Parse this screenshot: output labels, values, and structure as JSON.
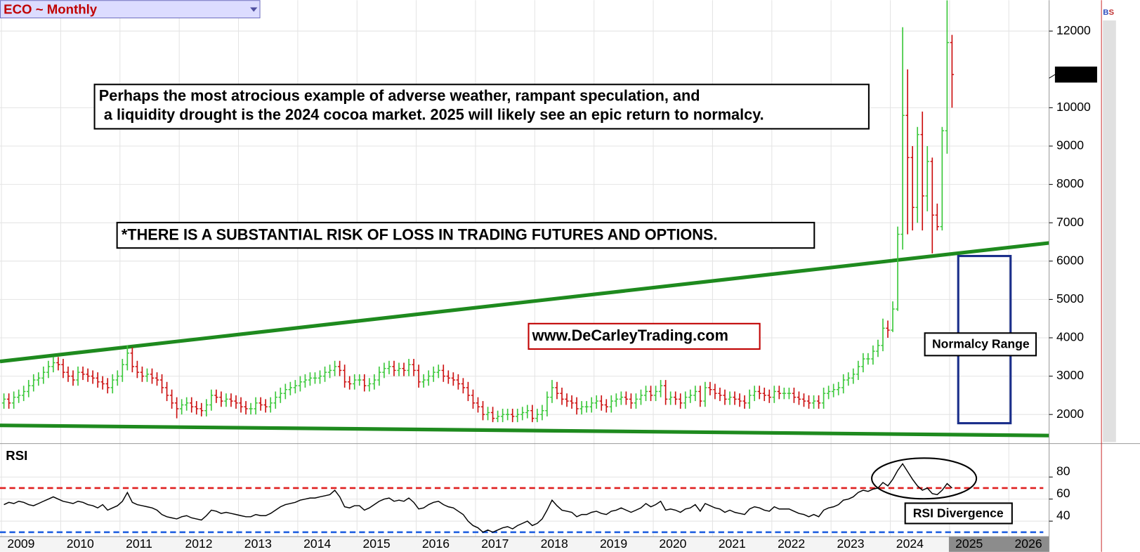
{
  "chart_data": [
    {
      "type": "ohlc",
      "title": "ECO ~ Monthly",
      "up_color": "#3cc83c",
      "down_color": "#cc1010",
      "grid": true,
      "xlim": [
        2009,
        2026.68
      ],
      "xticks": [
        2009,
        2010,
        2011,
        2012,
        2013,
        2014,
        2015,
        2016,
        2017,
        2018,
        2019,
        2020,
        2021,
        2022,
        2023,
        2024,
        2025,
        2026
      ],
      "ylim": [
        1242,
        12806
      ],
      "yticks": [
        2000,
        3000,
        4000,
        5000,
        6000,
        7000,
        8000,
        9000,
        10000,
        12000
      ],
      "annotations": [
        "Perhaps the most atrocious example of adverse weather, rampant speculation, and",
        " a liquidity drought is the 2024 cocoa market. 2025 will likely see an epic return to normalcy.",
        "*THERE IS A SUBSTANTIAL RISK OF LOSS IN TRADING FUTURES AND OPTIONS.",
        "www.DeCarleyTrading.com",
        "Normalcy Range"
      ],
      "toolbar": [
        "B",
        "S"
      ],
      "open": [
        2300,
        2400,
        2300,
        2450,
        2500,
        2600,
        2750,
        2900,
        2950,
        3100,
        3250,
        3350,
        3300,
        3100,
        3000,
        2900,
        3100,
        3050,
        3000,
        2950,
        2850,
        2800,
        2700,
        2900,
        3000,
        3300,
        3600,
        3250,
        3100,
        3000,
        3050,
        2950,
        2900,
        2700,
        2500,
        2300,
        2150,
        2250,
        2300,
        2200,
        2150,
        2100,
        2250,
        2500,
        2450,
        2350,
        2400,
        2350,
        2300,
        2200,
        2150,
        2150,
        2300,
        2250,
        2200,
        2300,
        2450,
        2550,
        2650,
        2700,
        2750,
        2850,
        2900,
        2950,
        2950,
        3000,
        3100,
        3150,
        3250,
        3150,
        2850,
        2800,
        2900,
        2900,
        2750,
        2800,
        2900,
        3100,
        3200,
        3250,
        3150,
        3200,
        3150,
        3300,
        3150,
        2850,
        2900,
        3000,
        3100,
        3150,
        3000,
        2950,
        2900,
        2800,
        2700,
        2500,
        2300,
        2200,
        2000,
        2050,
        1900,
        1950,
        2000,
        2000,
        1950,
        2000,
        2050,
        2100,
        1900,
        2000,
        2100,
        2450,
        2700,
        2550,
        2400,
        2350,
        2300,
        2150,
        2200,
        2200,
        2300,
        2350,
        2250,
        2200,
        2350,
        2400,
        2450,
        2400,
        2300,
        2400,
        2500,
        2600,
        2500,
        2600,
        2750,
        2400,
        2450,
        2400,
        2300,
        2450,
        2500,
        2600,
        2350,
        2700,
        2650,
        2550,
        2500,
        2400,
        2450,
        2400,
        2350,
        2300,
        2500,
        2600,
        2550,
        2500,
        2450,
        2600,
        2550,
        2550,
        2550,
        2450,
        2400,
        2350,
        2300,
        2350,
        2300,
        2550,
        2600,
        2650,
        2700,
        2900,
        2950,
        3050,
        3250,
        3450,
        3450,
        3650,
        3800,
        4250,
        4200,
        4750,
        6700,
        9800,
        8700,
        7400,
        9300,
        7700,
        8600,
        7200,
        6900,
        9400,
        11700
      ],
      "high": [
        2550,
        2550,
        2600,
        2650,
        2750,
        2900,
        3050,
        3100,
        3250,
        3400,
        3500,
        3500,
        3450,
        3250,
        3150,
        3250,
        3250,
        3200,
        3150,
        3100,
        3000,
        2950,
        3050,
        3150,
        3450,
        3800,
        3750,
        3400,
        3250,
        3200,
        3200,
        3100,
        3050,
        2850,
        2650,
        2450,
        2400,
        2450,
        2450,
        2350,
        2300,
        2400,
        2650,
        2650,
        2600,
        2550,
        2550,
        2500,
        2450,
        2350,
        2300,
        2450,
        2450,
        2400,
        2450,
        2600,
        2700,
        2800,
        2850,
        2900,
        3000,
        3050,
        3100,
        3100,
        3150,
        3250,
        3300,
        3400,
        3400,
        3300,
        3000,
        3050,
        3050,
        3050,
        2950,
        3050,
        3250,
        3350,
        3400,
        3400,
        3350,
        3350,
        3450,
        3450,
        3300,
        3050,
        3150,
        3250,
        3300,
        3300,
        3150,
        3100,
        3050,
        2950,
        2850,
        2650,
        2450,
        2350,
        2200,
        2200,
        2100,
        2150,
        2150,
        2150,
        2150,
        2200,
        2250,
        2250,
        2150,
        2250,
        2600,
        2900,
        2850,
        2700,
        2550,
        2500,
        2450,
        2350,
        2350,
        2450,
        2500,
        2500,
        2400,
        2500,
        2550,
        2600,
        2600,
        2550,
        2550,
        2650,
        2750,
        2750,
        2750,
        2900,
        2900,
        2600,
        2600,
        2550,
        2600,
        2650,
        2750,
        2750,
        2850,
        2850,
        2800,
        2700,
        2650,
        2600,
        2600,
        2550,
        2500,
        2650,
        2750,
        2750,
        2700,
        2650,
        2750,
        2750,
        2700,
        2700,
        2700,
        2600,
        2550,
        2500,
        2500,
        2500,
        2700,
        2750,
        2800,
        2850,
        3050,
        3100,
        3200,
        3400,
        3600,
        3600,
        3800,
        3950,
        4500,
        4450,
        4950,
        6900,
        12100,
        11000,
        9000,
        9500,
        9900,
        9000,
        8700,
        7500,
        9500,
        12800,
        11900
      ],
      "low": [
        2150,
        2150,
        2150,
        2300,
        2350,
        2450,
        2600,
        2750,
        2800,
        2950,
        3100,
        3150,
        2950,
        2850,
        2750,
        2750,
        2900,
        2850,
        2800,
        2700,
        2650,
        2550,
        2550,
        2750,
        2850,
        3150,
        3100,
        2950,
        2850,
        2850,
        2800,
        2750,
        2550,
        2350,
        2150,
        1900,
        2000,
        2100,
        2050,
        2000,
        1950,
        1950,
        2100,
        2300,
        2200,
        2200,
        2200,
        2150,
        2050,
        2000,
        2000,
        2000,
        2100,
        2050,
        2050,
        2150,
        2300,
        2400,
        2500,
        2550,
        2600,
        2700,
        2750,
        2800,
        2800,
        2850,
        2950,
        3000,
        3000,
        2700,
        2650,
        2650,
        2750,
        2600,
        2600,
        2650,
        2750,
        2950,
        3050,
        3000,
        3000,
        3000,
        3000,
        3000,
        2700,
        2700,
        2750,
        2850,
        2950,
        2850,
        2800,
        2750,
        2650,
        2550,
        2350,
        2150,
        2050,
        1850,
        1850,
        1800,
        1800,
        1800,
        1850,
        1800,
        1800,
        1850,
        1900,
        1800,
        1800,
        1850,
        1950,
        2300,
        2400,
        2250,
        2200,
        2150,
        2000,
        2000,
        2050,
        2050,
        2150,
        2100,
        2050,
        2050,
        2200,
        2250,
        2250,
        2150,
        2150,
        2250,
        2350,
        2350,
        2350,
        2450,
        2250,
        2250,
        2250,
        2150,
        2150,
        2300,
        2350,
        2200,
        2200,
        2500,
        2400,
        2350,
        2250,
        2250,
        2250,
        2200,
        2150,
        2150,
        2350,
        2400,
        2350,
        2300,
        2300,
        2400,
        2400,
        2400,
        2300,
        2250,
        2200,
        2150,
        2150,
        2150,
        2150,
        2400,
        2450,
        2500,
        2550,
        2750,
        2800,
        2900,
        3100,
        3300,
        3300,
        3500,
        3650,
        4000,
        4150,
        4700,
        6300,
        6700,
        6800,
        7000,
        6800,
        7300,
        6200,
        6800,
        6800,
        8800,
        10000
      ],
      "close": [
        2400,
        2300,
        2450,
        2500,
        2600,
        2750,
        2900,
        2950,
        3100,
        3250,
        3350,
        3300,
        3100,
        3000,
        2900,
        3100,
        3050,
        3000,
        2950,
        2850,
        2800,
        2700,
        2900,
        3000,
        3300,
        3600,
        3250,
        3100,
        3000,
        3050,
        2950,
        2900,
        2700,
        2500,
        2300,
        2150,
        2250,
        2300,
        2200,
        2150,
        2100,
        2250,
        2500,
        2450,
        2350,
        2400,
        2350,
        2300,
        2200,
        2150,
        2150,
        2300,
        2250,
        2200,
        2300,
        2450,
        2550,
        2650,
        2700,
        2750,
        2850,
        2900,
        2950,
        2950,
        3000,
        3100,
        3150,
        3250,
        3150,
        2850,
        2800,
        2900,
        2900,
        2750,
        2800,
        2900,
        3100,
        3200,
        3250,
        3150,
        3200,
        3150,
        3300,
        3150,
        2850,
        2900,
        3000,
        3100,
        3150,
        3000,
        2950,
        2900,
        2800,
        2700,
        2500,
        2300,
        2200,
        2000,
        2050,
        1900,
        1950,
        2000,
        2000,
        1950,
        2000,
        2050,
        2100,
        1900,
        2000,
        2100,
        2450,
        2700,
        2550,
        2400,
        2350,
        2300,
        2150,
        2200,
        2200,
        2300,
        2350,
        2250,
        2200,
        2350,
        2400,
        2450,
        2400,
        2300,
        2400,
        2500,
        2600,
        2500,
        2600,
        2750,
        2400,
        2450,
        2400,
        2300,
        2450,
        2500,
        2600,
        2350,
        2700,
        2650,
        2550,
        2500,
        2400,
        2450,
        2400,
        2350,
        2300,
        2500,
        2600,
        2550,
        2500,
        2450,
        2600,
        2550,
        2550,
        2550,
        2450,
        2400,
        2350,
        2300,
        2350,
        2300,
        2550,
        2600,
        2650,
        2700,
        2900,
        2950,
        3050,
        3250,
        3450,
        3450,
        3650,
        3800,
        4250,
        4200,
        4750,
        6700,
        9800,
        8700,
        7400,
        9300,
        7700,
        8600,
        7200,
        6900,
        9400,
        11700,
        10865
      ]
    },
    {
      "type": "line",
      "title": "RSI",
      "color": "#000000",
      "grid": true,
      "xlim": [
        2009,
        2026.68
      ],
      "ylim": [
        26,
        109
      ],
      "yticks": [
        40,
        60,
        80
      ],
      "levels": [
        {
          "value": 70,
          "color": "#e02020"
        },
        {
          "value": 30,
          "color": "#2060e0"
        }
      ],
      "annotations": [
        "RSI Divergence"
      ],
      "values": [
        55,
        57,
        56,
        58,
        57,
        55,
        54,
        56,
        58,
        60,
        62,
        60,
        58,
        57,
        56,
        58,
        57,
        55,
        54,
        52,
        55,
        50,
        52,
        54,
        58,
        66,
        57,
        55,
        54,
        53,
        52,
        50,
        46,
        44,
        43,
        42,
        44,
        45,
        43,
        42,
        41,
        45,
        50,
        49,
        47,
        48,
        47,
        46,
        45,
        44,
        44,
        46,
        45,
        45,
        47,
        50,
        53,
        55,
        56,
        57,
        59,
        60,
        61,
        61,
        62,
        63,
        64,
        68,
        62,
        53,
        52,
        54,
        54,
        50,
        52,
        55,
        58,
        60,
        61,
        58,
        59,
        58,
        61,
        57,
        51,
        52,
        55,
        57,
        58,
        55,
        53,
        52,
        49,
        46,
        40,
        36,
        34,
        30,
        32,
        30,
        32,
        34,
        35,
        33,
        36,
        38,
        40,
        36,
        38,
        42,
        50,
        59,
        54,
        50,
        49,
        48,
        44,
        46,
        46,
        48,
        49,
        47,
        46,
        49,
        50,
        52,
        50,
        48,
        50,
        52,
        56,
        53,
        55,
        58,
        50,
        51,
        50,
        48,
        51,
        52,
        55,
        49,
        56,
        54,
        52,
        51,
        48,
        50,
        48,
        47,
        46,
        51,
        53,
        52,
        50,
        49,
        53,
        51,
        51,
        51,
        49,
        47,
        46,
        44,
        46,
        44,
        50,
        52,
        53,
        55,
        59,
        60,
        62,
        66,
        68,
        67,
        69,
        70,
        75,
        72,
        78,
        86,
        92,
        85,
        78,
        72,
        68,
        70,
        65,
        64,
        68,
        74,
        70
      ]
    }
  ]
}
